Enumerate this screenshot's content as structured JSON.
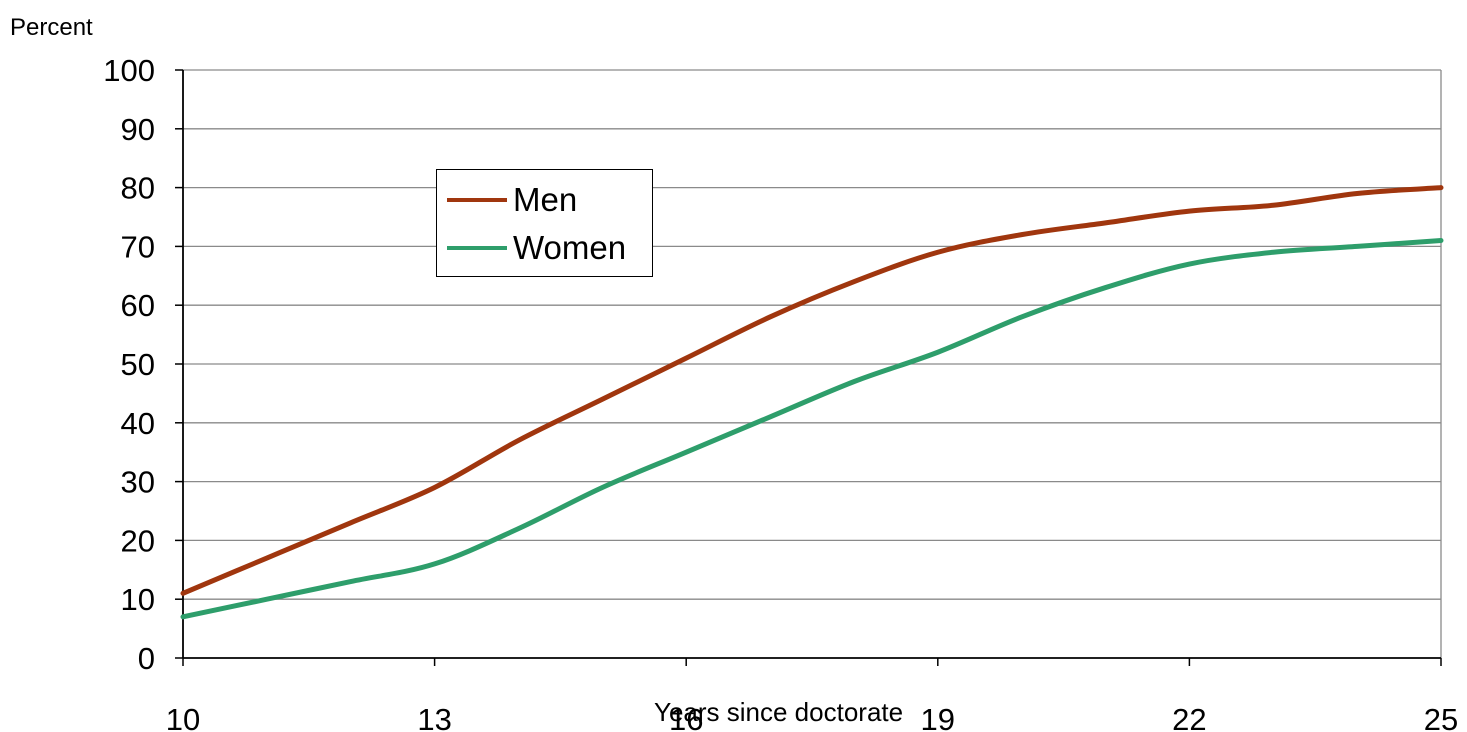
{
  "chart_data": {
    "type": "line",
    "ylabel": "Percent",
    "xlabel": "Years since doctorate",
    "xlim": [
      10,
      25
    ],
    "ylim": [
      0,
      100
    ],
    "x_ticks": [
      10,
      13,
      16,
      19,
      22,
      25
    ],
    "y_ticks": [
      0,
      10,
      20,
      30,
      40,
      50,
      60,
      70,
      80,
      90,
      100
    ],
    "grid": "horizontal",
    "legend_position": "upper-left-center",
    "series": [
      {
        "name": "Men",
        "color": "#a0360e",
        "x": [
          10,
          11,
          12,
          13,
          14,
          15,
          16,
          17,
          18,
          19,
          20,
          21,
          22,
          23,
          24,
          25
        ],
        "y": [
          11,
          17,
          23,
          29,
          37,
          44,
          51,
          58,
          64,
          69,
          72,
          74,
          76,
          77,
          79,
          80
        ]
      },
      {
        "name": "Women",
        "color": "#2e9e6b",
        "x": [
          10,
          11,
          12,
          13,
          14,
          15,
          16,
          17,
          18,
          19,
          20,
          21,
          22,
          23,
          24,
          25
        ],
        "y": [
          7,
          10,
          13,
          16,
          22,
          29,
          35,
          41,
          47,
          52,
          58,
          63,
          67,
          69,
          70,
          71
        ]
      }
    ]
  }
}
